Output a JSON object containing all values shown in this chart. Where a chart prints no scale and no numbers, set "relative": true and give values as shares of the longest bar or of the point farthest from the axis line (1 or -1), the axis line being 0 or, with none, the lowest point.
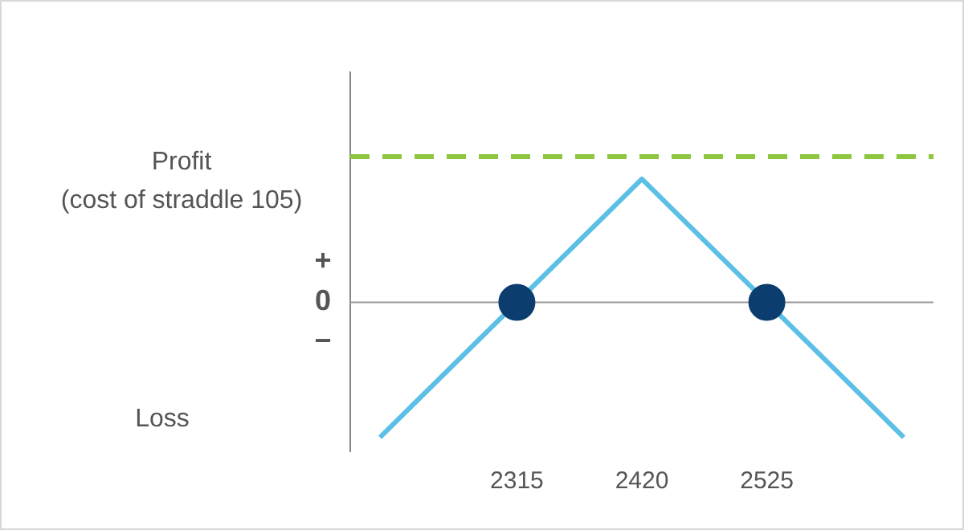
{
  "chart_data": {
    "type": "line",
    "relative": true,
    "x": [
      2200,
      2315,
      2420,
      2525,
      2640
    ],
    "xlim": [
      2175,
      2665
    ],
    "xticks": [
      2315,
      2420,
      2525
    ],
    "series": [
      {
        "color": "#5bbfe6",
        "values": [
          -1,
          0,
          0.913,
          0,
          -1
        ],
        "marker": "none"
      },
      {
        "type": "scatter",
        "color": "#0b3d6e",
        "x": [
          2315,
          2525
        ],
        "values": [
          0,
          0
        ],
        "marker": "circle"
      }
    ],
    "ref_lines": [
      {
        "axis": "y",
        "value": 0,
        "color": "#9a9a9a",
        "line_style": "solid"
      },
      {
        "axis": "y",
        "value": 1.08,
        "color": "#8dc63f",
        "line_style": "dashed"
      }
    ],
    "annotations": [
      "Profit",
      "(cost of straddle 105)",
      "+",
      "0",
      "−",
      "Loss"
    ],
    "legend": false,
    "grid": false
  }
}
